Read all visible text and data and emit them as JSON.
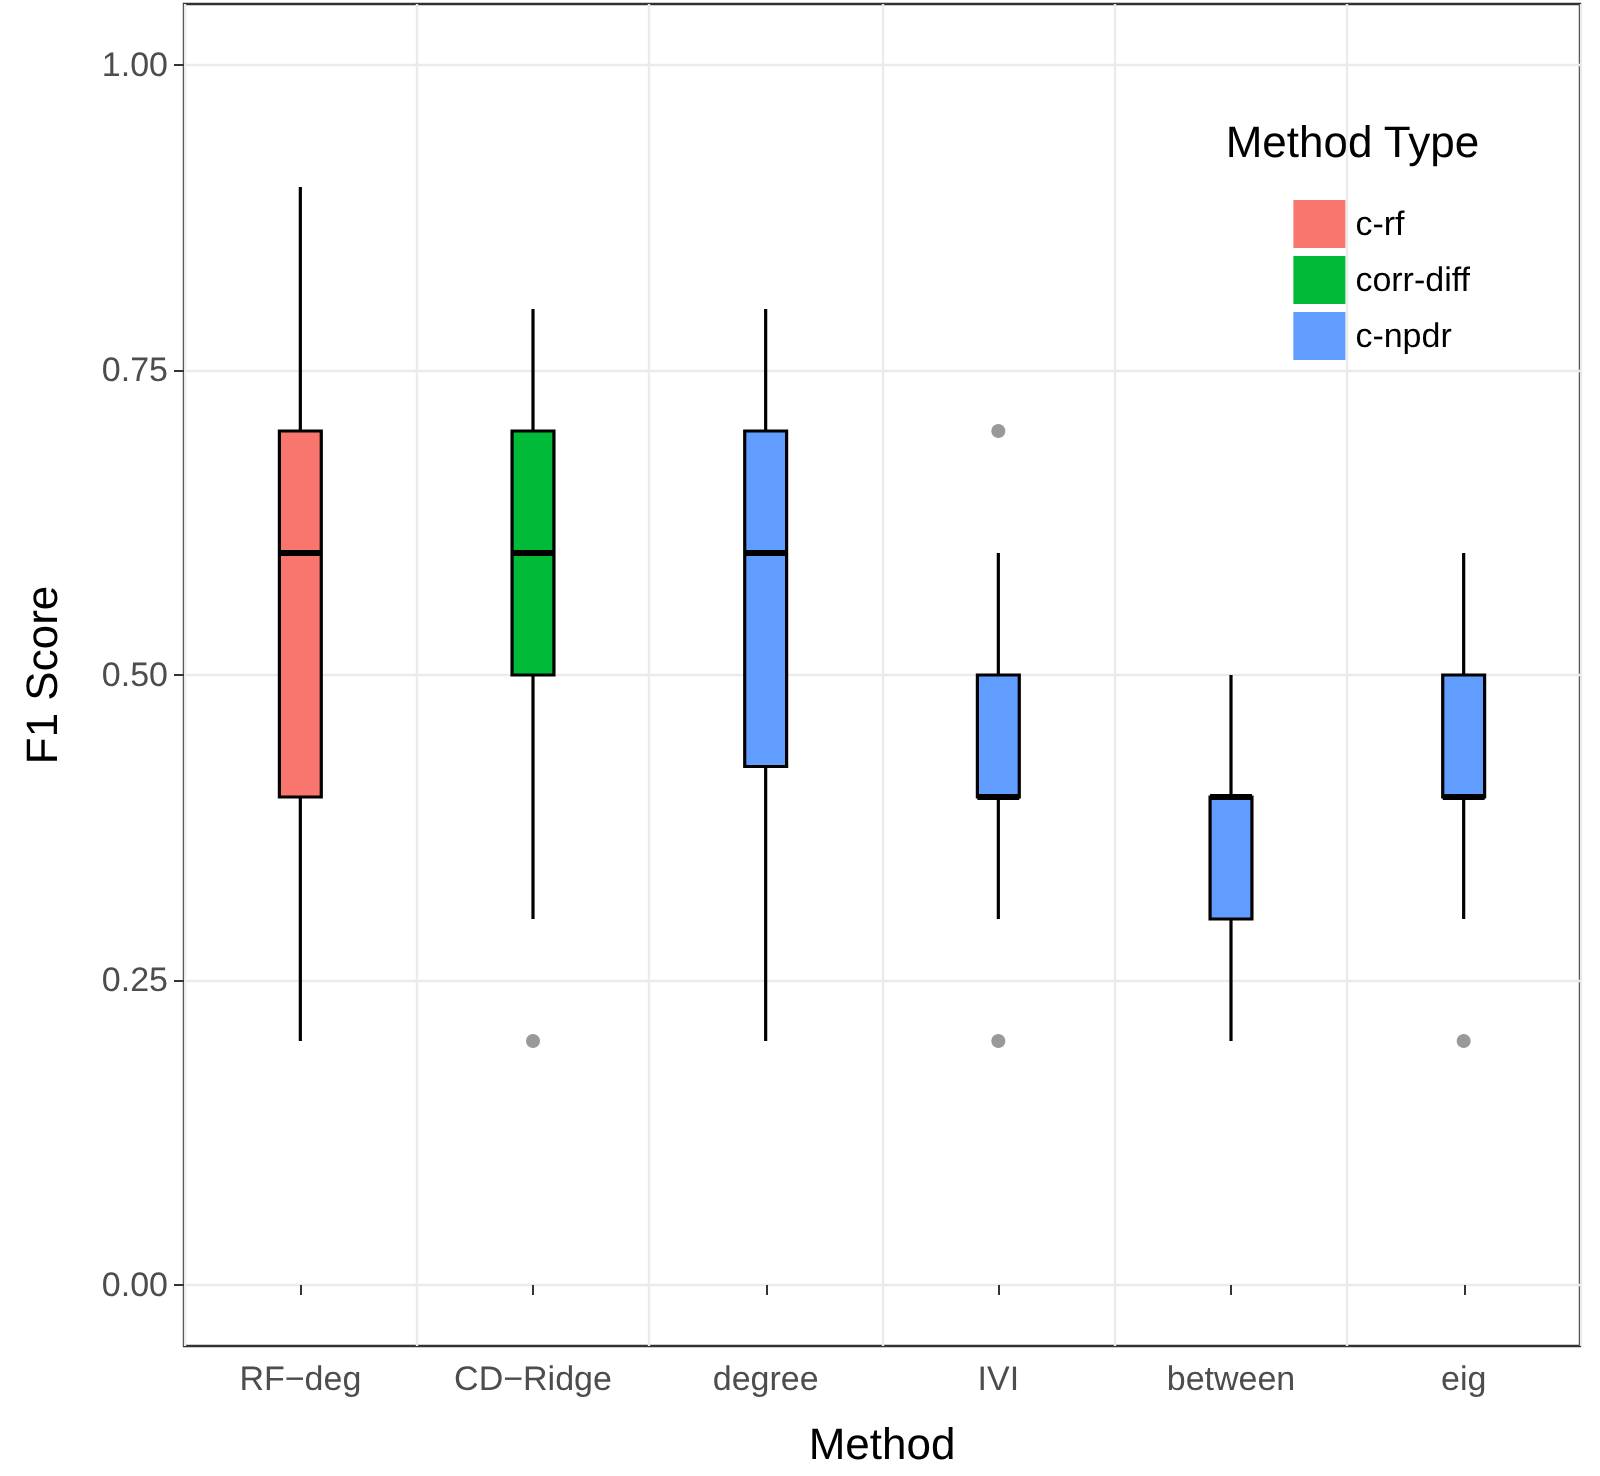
{
  "chart_data": {
    "type": "box",
    "xlabel": "Method",
    "ylabel": "F1 Score",
    "legend_title": "Method Type",
    "legend": "top right",
    "grid": true,
    "categories": [
      "RF−deg",
      "CD−Ridge",
      "degree",
      "IVI",
      "between",
      "eig"
    ],
    "ylim": [
      -0.05,
      1.05
    ],
    "yticks": [
      {
        "value": 0,
        "label": "0.00"
      },
      {
        "value": 0.25,
        "label": "0.25"
      },
      {
        "value": 0.5,
        "label": "0.50"
      },
      {
        "value": 0.75,
        "label": "0.75"
      },
      {
        "value": 1,
        "label": "1.00"
      }
    ],
    "series": [
      {
        "name": "c-rf",
        "color": "#f8766d",
        "boxes": [
          {
            "low": 0.2,
            "q1": 0.4,
            "median": 0.6,
            "q3": 0.7,
            "high": 0.9
          },
          null,
          null,
          null,
          null,
          null
        ]
      },
      {
        "name": "corr-diff",
        "color": "#00ba38",
        "boxes": [
          null,
          {
            "low": 0.3,
            "q1": 0.5,
            "median": 0.6,
            "q3": 0.7,
            "high": 0.8,
            "outliers": [
              0.2
            ]
          },
          null,
          null,
          null,
          null
        ]
      },
      {
        "name": "c-npdr",
        "color": "#619cff",
        "boxes": [
          null,
          null,
          {
            "low": 0.2,
            "q1": 0.425,
            "median": 0.6,
            "q3": 0.7,
            "high": 0.8
          },
          {
            "low": 0.3,
            "q1": 0.4,
            "median": 0.4,
            "q3": 0.5,
            "high": 0.6,
            "outliers": [
              0.2,
              0.7
            ]
          },
          {
            "low": 0.2,
            "q1": 0.3,
            "median": 0.4,
            "q3": 0.4,
            "high": 0.5
          },
          {
            "low": 0.3,
            "q1": 0.4,
            "median": 0.4,
            "q3": 0.5,
            "high": 0.6,
            "outliers": [
              0.2
            ]
          }
        ]
      }
    ]
  }
}
